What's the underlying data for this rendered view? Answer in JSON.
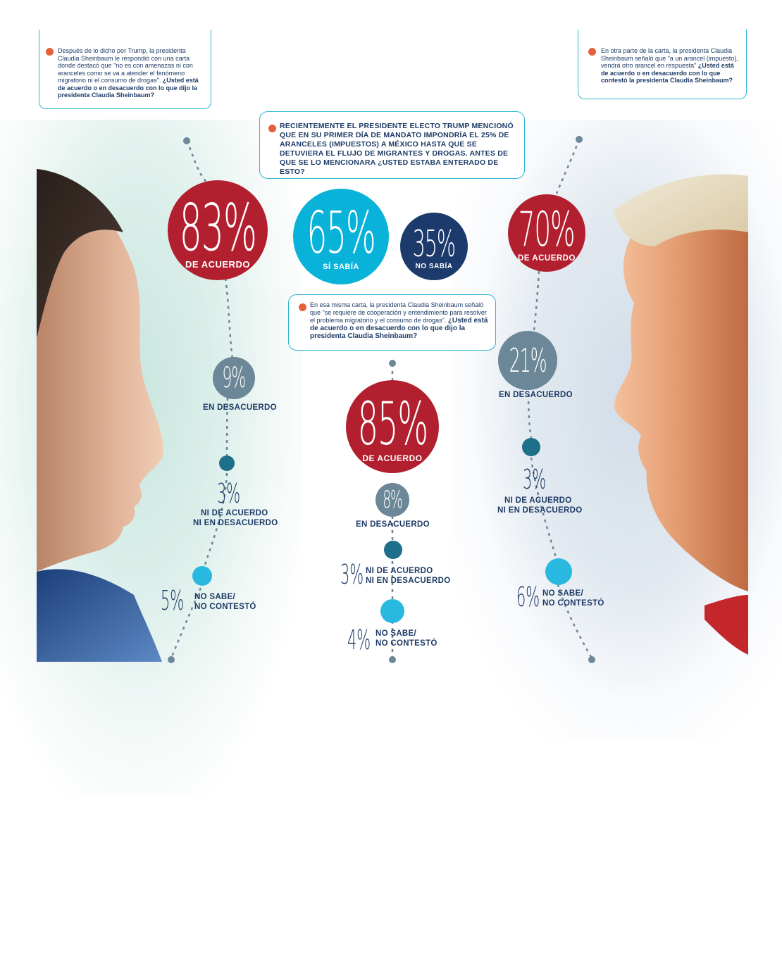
{
  "questions": {
    "top_left": {
      "text": "Después de lo dicho por Trump, la presidenta Claudia Sheinbaum le respondió con una carta donde destacó que \"no es con amenazas ni con aranceles como se va a atender el fenómeno migratorio ni el consumo de drogas\".",
      "question": "¿Usted está de acuerdo o en desacuerdo con lo que dijo la presidenta Claudia Sheinbaum?"
    },
    "top_right": {
      "text": "En otra parte de la carta, la presidenta Claudia Sheinbaum señaló que \"a un arancel (impuesto), vendrá otro arancel en respuesta\"",
      "question": "¿Usted está de acuerdo o en desacuerdo con lo que contestó la presidenta Claudia Sheinbaum?"
    },
    "center": {
      "text": "RECIENTEMENTE EL PRESIDENTE ELECTO TRUMP MENCIONÓ QUE EN SU PRIMER DÍA DE MANDATO IMPONDRÍA EL 25% DE ARANCELES (IMPUESTOS) A MÉXICO HASTA QUE SE DETUVIERA EL FLUJO DE MIGRANTES Y DROGAS. ANTES DE QUE SE LO MENCIONARA ¿USTED ESTABA ENTERADO DE ESTO?"
    },
    "middle": {
      "text": "En esa misma carta, la presidenta Claudia Sheinbaum señaló que \"se requiere de cooperación y entendimiento para resolver el problema migratorio y el consumo de drogas\".",
      "question": "¿Usted está de acuerdo o en desacuerdo con lo que dijo la presidenta Claudia Sheinbaum?"
    }
  },
  "results": {
    "left": {
      "acuerdo": "83%",
      "acuerdo_label": "DE ACUERDO",
      "desacuerdo": "9%",
      "desacuerdo_label": "EN DESACUERDO",
      "ni": "3%",
      "ni_label_1": "NI DE ACUERDO",
      "ni_label_2": "NI EN DESACUERDO",
      "nosabe": "5%",
      "nosabe_label_1": "NO SABE/",
      "nosabe_label_2": "NO CONTESTÓ"
    },
    "center": {
      "si": "65%",
      "si_label": "SÍ SABÍA",
      "no": "35%",
      "no_label": "NO SABÍA"
    },
    "middle": {
      "acuerdo": "85%",
      "acuerdo_label": "DE ACUERDO",
      "desacuerdo": "8%",
      "desacuerdo_label": "EN DESACUERDO",
      "ni": "3%",
      "ni_label_1": "NI DE ACUERDO",
      "ni_label_2": "NI EN DESACUERDO",
      "nosabe": "4%",
      "nosabe_label_1": "NO SABE/",
      "nosabe_label_2": "NO CONTESTÓ"
    },
    "right": {
      "acuerdo": "70%",
      "acuerdo_label": "DE ACUERDO",
      "desacuerdo": "21%",
      "desacuerdo_label": "EN DESACUERDO",
      "ni": "3%",
      "ni_label_1": "NI DE ACUERDO",
      "ni_label_2": "NI EN DESACUERDO",
      "nosabe": "6%",
      "nosabe_label_1": "NO SABE/",
      "nosabe_label_2": "NO CONTESTÓ"
    }
  },
  "colors": {
    "red": "#b21f2e",
    "cyan": "#08b2d9",
    "navy": "#1c3a6b",
    "slate": "#6c8797",
    "teal": "#1d6f8a",
    "bullet": "#e4603a",
    "border": "#2eb6d6"
  }
}
